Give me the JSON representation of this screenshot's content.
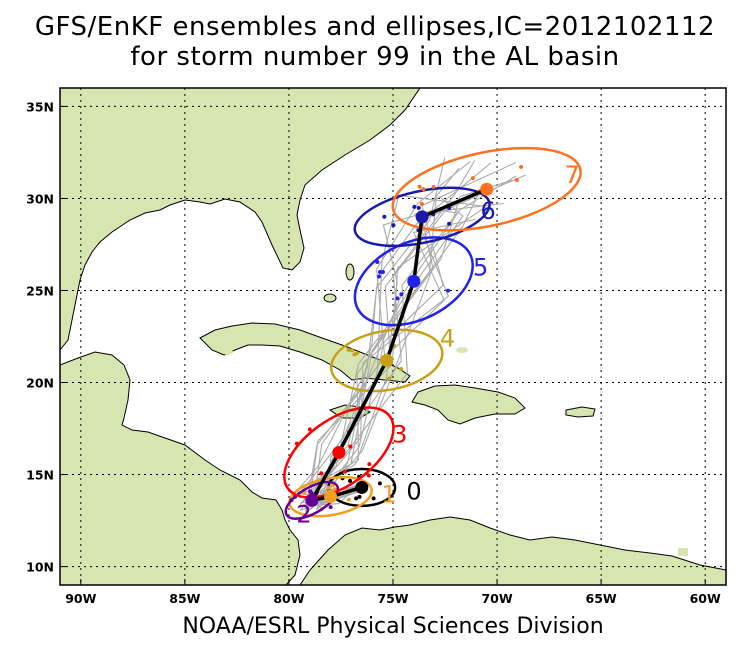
{
  "title_line1": "GFS/EnKF ensembles and ellipses,IC=2012102112",
  "title_line2": "for storm number 99 in the AL basin",
  "credit": "NOAA/ESRL Physical Sciences Division",
  "map": {
    "lon_range": [
      -91,
      -59
    ],
    "lat_range": [
      9,
      36
    ],
    "lon_ticks": [
      {
        "value": -90,
        "label": "90W"
      },
      {
        "value": -85,
        "label": "85W"
      },
      {
        "value": -80,
        "label": "80W"
      },
      {
        "value": -75,
        "label": "75W"
      },
      {
        "value": -70,
        "label": "70W"
      },
      {
        "value": -65,
        "label": "65W"
      },
      {
        "value": -60,
        "label": "60W"
      }
    ],
    "lat_ticks": [
      {
        "value": 10,
        "label": "10N"
      },
      {
        "value": 15,
        "label": "15N"
      },
      {
        "value": 20,
        "label": "20N"
      },
      {
        "value": 25,
        "label": "25N"
      },
      {
        "value": 30,
        "label": "30N"
      },
      {
        "value": 35,
        "label": "35N"
      }
    ],
    "grid": "dotted",
    "colors": {
      "ocean": "#ffffff",
      "land": "#d7e6b0",
      "border": "#000000"
    }
  },
  "forecast_days": [
    {
      "label": "0",
      "color": "#000000",
      "center": [
        -76.5,
        14.3
      ],
      "ellipse": {
        "rx_deg": 1.6,
        "ry_deg": 1.0,
        "rot": 0
      }
    },
    {
      "label": "1",
      "color": "#f0a020",
      "center": [
        -78.0,
        13.8
      ],
      "ellipse": {
        "rx_deg": 2.0,
        "ry_deg": 1.0,
        "rot": -10
      }
    },
    {
      "label": "2",
      "color": "#660099",
      "center": [
        -78.9,
        13.6
      ],
      "ellipse": {
        "rx_deg": 1.4,
        "ry_deg": 0.7,
        "rot": -30
      }
    },
    {
      "label": "3",
      "color": "#ff0000",
      "center": [
        -77.6,
        16.2
      ],
      "ellipse": {
        "rx_deg": 3.0,
        "ry_deg": 1.8,
        "rot": -35
      }
    },
    {
      "label": "4",
      "color": "#c8a018",
      "center": [
        -75.3,
        21.2
      ],
      "ellipse": {
        "rx_deg": 2.7,
        "ry_deg": 1.6,
        "rot": -10
      }
    },
    {
      "label": "5",
      "color": "#2222ee",
      "center": [
        -74.0,
        25.5
      ],
      "ellipse": {
        "rx_deg": 3.0,
        "ry_deg": 2.1,
        "rot": -25
      }
    },
    {
      "label": "6",
      "color": "#1a1aaa",
      "center": [
        -73.6,
        29.0
      ],
      "ellipse": {
        "rx_deg": 3.3,
        "ry_deg": 1.4,
        "rot": -12
      }
    },
    {
      "label": "7",
      "color": "#ff7020",
      "center": [
        -70.5,
        30.5
      ],
      "ellipse": {
        "rx_deg": 4.6,
        "ry_deg": 2.0,
        "rot": -12
      }
    }
  ],
  "mean_track": [
    [
      -76.5,
      14.3
    ],
    [
      -78.0,
      13.8
    ],
    [
      -78.9,
      13.6
    ],
    [
      -77.6,
      16.2
    ],
    [
      -75.3,
      21.2
    ],
    [
      -74.0,
      25.5
    ],
    [
      -73.6,
      29.0
    ],
    [
      -70.5,
      30.5
    ]
  ]
}
